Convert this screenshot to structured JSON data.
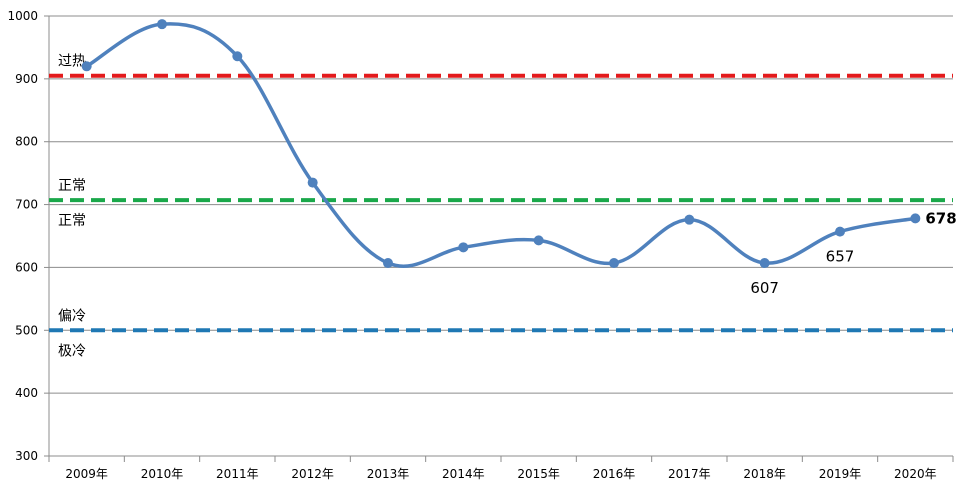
{
  "chart_data": {
    "type": "line",
    "title": "",
    "xlabel": "",
    "ylabel": "",
    "categories": [
      "2009年",
      "2010年",
      "2011年",
      "2012年",
      "2013年",
      "2014年",
      "2015年",
      "2016年",
      "2017年",
      "2018年",
      "2019年",
      "2020年"
    ],
    "ylim": [
      300,
      1000
    ],
    "y_ticks": [
      "1000",
      "900",
      "800",
      "700",
      "600",
      "500",
      "400",
      "300"
    ],
    "grid": true,
    "series": [
      {
        "values": [
          920,
          987,
          936,
          735,
          607,
          632,
          643,
          607,
          676,
          607,
          657,
          678
        ],
        "color": "#4f81bd",
        "smooth": true
      }
    ],
    "data_labels": [
      {
        "index": 9,
        "text": "607",
        "position": "below",
        "bold": false
      },
      {
        "index": 10,
        "text": "657",
        "position": "below",
        "bold": false
      },
      {
        "index": 11,
        "text": "678",
        "position": "right",
        "bold": true
      }
    ],
    "threshold_lines": [
      {
        "value": 905,
        "color": "#e31a1c",
        "style": "dashed"
      },
      {
        "value": 707,
        "color": "#1aa84a",
        "style": "dashed"
      },
      {
        "value": 500,
        "color": "#1f78b4",
        "style": "dashed"
      }
    ],
    "zone_labels": [
      {
        "text": "过热",
        "value": 905,
        "side": "above"
      },
      {
        "text": "正常",
        "value": 707,
        "side": "above"
      },
      {
        "text": "正常",
        "value": 707,
        "side": "below"
      },
      {
        "text": "偏冷",
        "value": 500,
        "side": "above"
      },
      {
        "text": "极冷",
        "value": 500,
        "side": "below"
      }
    ]
  }
}
